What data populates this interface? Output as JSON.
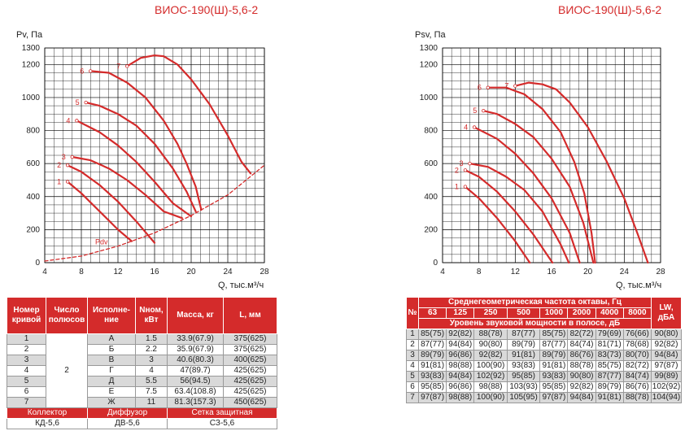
{
  "titles": {
    "left": "ВИОС-190(Ш)-5,6-2",
    "right": "ВИОС-190(Ш)-5,6-2"
  },
  "chart_data": [
    {
      "type": "line",
      "title": "ВИОС-190(Ш)-5,6-2",
      "ylabel": "Pv, Па",
      "xlabel": "Q, тыс.м³/ч",
      "xlim": [
        4,
        28
      ],
      "ylim": [
        0,
        1300
      ],
      "xticks": [
        4,
        8,
        12,
        16,
        20,
        24,
        28
      ],
      "yticks": [
        0,
        200,
        400,
        600,
        800,
        1000,
        1200,
        1300
      ],
      "grid": true,
      "series": [
        {
          "name": "1",
          "x": [
            6.5,
            8,
            10,
            12,
            13.5
          ],
          "y": [
            490,
            420,
            310,
            200,
            130
          ]
        },
        {
          "name": "2",
          "x": [
            6.5,
            8,
            10,
            12,
            14,
            16
          ],
          "y": [
            590,
            550,
            470,
            370,
            250,
            120
          ]
        },
        {
          "name": "3",
          "x": [
            7,
            9,
            11,
            13,
            15,
            17,
            19
          ],
          "y": [
            640,
            620,
            570,
            500,
            410,
            310,
            270
          ]
        },
        {
          "name": "4",
          "x": [
            7.5,
            10,
            12,
            14,
            16,
            18,
            20
          ],
          "y": [
            860,
            790,
            710,
            610,
            490,
            360,
            280
          ]
        },
        {
          "name": "5",
          "x": [
            8.5,
            10,
            12,
            14,
            16,
            18,
            19.5,
            20.5
          ],
          "y": [
            970,
            950,
            900,
            830,
            720,
            570,
            430,
            310
          ]
        },
        {
          "name": "6",
          "x": [
            9,
            11,
            13,
            15,
            17,
            18.5,
            19.5,
            20.5,
            21.1
          ],
          "y": [
            1160,
            1150,
            1090,
            1000,
            860,
            720,
            600,
            460,
            320
          ]
        },
        {
          "name": "7",
          "x": [
            13,
            14.5,
            16,
            17,
            18.5,
            20,
            22,
            24,
            25.5,
            26.5
          ],
          "y": [
            1190,
            1240,
            1255,
            1250,
            1200,
            1110,
            960,
            770,
            610,
            540
          ]
        },
        {
          "name": "Pdv",
          "dashed": true,
          "x": [
            4,
            8,
            12,
            16,
            20,
            24,
            28
          ],
          "y": [
            10,
            40,
            100,
            180,
            285,
            410,
            590
          ]
        }
      ]
    },
    {
      "type": "line",
      "title": "ВИОС-190(Ш)-5,6-2",
      "ylabel": "Psv, Па",
      "xlabel": "Q, тыс.м³/ч",
      "xlim": [
        4,
        28
      ],
      "ylim": [
        0,
        1300
      ],
      "xticks": [
        4,
        8,
        12,
        16,
        20,
        24,
        28
      ],
      "yticks": [
        0,
        200,
        400,
        600,
        800,
        1000,
        1200,
        1300
      ],
      "grid": true,
      "series": [
        {
          "name": "1",
          "x": [
            6.5,
            8,
            10,
            12,
            13.6
          ],
          "y": [
            460,
            390,
            270,
            130,
            0
          ]
        },
        {
          "name": "2",
          "x": [
            6.5,
            8,
            10,
            12,
            14,
            16.1
          ],
          "y": [
            560,
            520,
            430,
            310,
            170,
            0
          ]
        },
        {
          "name": "3",
          "x": [
            7,
            9,
            11,
            13,
            15,
            17,
            17.9
          ],
          "y": [
            600,
            580,
            520,
            440,
            310,
            110,
            0
          ]
        },
        {
          "name": "4",
          "x": [
            7.5,
            10,
            12,
            14,
            16,
            18,
            19.1
          ],
          "y": [
            820,
            750,
            660,
            540,
            390,
            180,
            0
          ]
        },
        {
          "name": "5",
          "x": [
            8.5,
            10,
            12,
            14,
            16,
            18,
            19.5,
            20.6
          ],
          "y": [
            920,
            900,
            840,
            760,
            630,
            460,
            240,
            0
          ]
        },
        {
          "name": "6",
          "x": [
            9,
            11,
            13,
            15,
            17,
            18.5,
            19.6,
            20.4,
            20.8
          ],
          "y": [
            1060,
            1060,
            1020,
            930,
            790,
            610,
            420,
            180,
            0
          ]
        },
        {
          "name": "7",
          "x": [
            12,
            13.5,
            15,
            16.5,
            18,
            20,
            22,
            24,
            25.5,
            26.6
          ],
          "y": [
            1070,
            1090,
            1080,
            1050,
            970,
            820,
            620,
            390,
            170,
            0
          ]
        }
      ]
    }
  ],
  "table_left": {
    "headers": [
      "Номер кривой",
      "Число полюсов",
      "Исполне-ние",
      "Nном, кВт",
      "Масса, кг",
      "L, мм"
    ],
    "poles": "2",
    "rows": [
      [
        "1",
        "А",
        "1.5",
        "33.9(67.9)",
        "375(625)"
      ],
      [
        "2",
        "Б",
        "2.2",
        "35.9(67.9)",
        "375(625)"
      ],
      [
        "3",
        "В",
        "3",
        "40.6(80.3)",
        "400(625)"
      ],
      [
        "4",
        "Г",
        "4",
        "47(89.7)",
        "425(625)"
      ],
      [
        "5",
        "Д",
        "5.5",
        "56(94.5)",
        "425(625)"
      ],
      [
        "6",
        "Е",
        "7.5",
        "63.4(108.8)",
        "425(625)"
      ],
      [
        "7",
        "Ж",
        "11",
        "81.3(157.3)",
        "450(625)"
      ]
    ],
    "footer_headers": [
      "Коллектор",
      "Диффузор",
      "Сетка защитная"
    ],
    "footer_values": [
      "КД-5,6",
      "ДВ-5,6",
      "СЗ-5,6"
    ]
  },
  "table_right": {
    "col_no": "№",
    "freq_header": "Среднегеометрическая частота октавы, Гц",
    "freqs": [
      "63",
      "125",
      "250",
      "500",
      "1000",
      "2000",
      "4000",
      "8000"
    ],
    "band_header": "Уровень звуковой мощности в полосе, дБ",
    "lw_header": "LW, дБА",
    "rows": [
      [
        "1",
        "85(75)",
        "92(82)",
        "88(78)",
        "87(77)",
        "85(75)",
        "82(72)",
        "79(69)",
        "76(66)",
        "90(80)"
      ],
      [
        "2",
        "87(77)",
        "94(84)",
        "90(80)",
        "89(79)",
        "87(77)",
        "84(74)",
        "81(71)",
        "78(68)",
        "92(82)"
      ],
      [
        "3",
        "89(79)",
        "96(86)",
        "92(82)",
        "91(81)",
        "89(79)",
        "86(76)",
        "83(73)",
        "80(70)",
        "94(84)"
      ],
      [
        "4",
        "91(81)",
        "98(88)",
        "100(90)",
        "93(83)",
        "91(81)",
        "88(78)",
        "85(75)",
        "82(72)",
        "97(87)"
      ],
      [
        "5",
        "93(83)",
        "94(84)",
        "102(92)",
        "95(85)",
        "93(83)",
        "90(80)",
        "87(77)",
        "84(74)",
        "99(89)"
      ],
      [
        "6",
        "95(85)",
        "96(86)",
        "98(88)",
        "103(93)",
        "95(85)",
        "92(82)",
        "89(79)",
        "86(76)",
        "102(92)"
      ],
      [
        "7",
        "97(87)",
        "98(88)",
        "100(90)",
        "105(95)",
        "97(87)",
        "94(84)",
        "91(81)",
        "88(78)",
        "104(94)"
      ]
    ]
  },
  "colors": {
    "accent": "#d42b2b",
    "grid": "#000000",
    "row_alt": "#d9d9d9"
  }
}
